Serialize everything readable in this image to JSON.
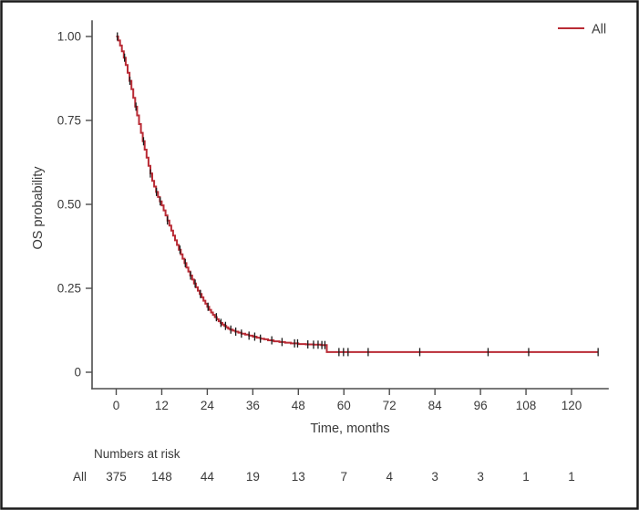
{
  "colors": {
    "curve": "#b92b35",
    "censor": "#1a1a1a",
    "axis": "#4d4d4d",
    "text": "#3a3a3a",
    "frame": "#1a1a1a",
    "background": "#ffffff"
  },
  "chart_data": {
    "type": "line",
    "subtype": "kaplan-meier-step",
    "title": "",
    "xlabel": "Time, months",
    "ylabel": "OS probability",
    "xlim": [
      0,
      129
    ],
    "ylim": [
      0,
      1.0
    ],
    "grid": "off",
    "xticks": [
      0,
      12,
      24,
      36,
      48,
      60,
      72,
      84,
      96,
      108,
      120
    ],
    "yticks": [
      {
        "value": 0,
        "label": "0"
      },
      {
        "value": 0.25,
        "label": "0.25"
      },
      {
        "value": 0.5,
        "label": "0.50"
      },
      {
        "value": 0.75,
        "label": "0.75"
      },
      {
        "value": 1,
        "label": "1.00"
      }
    ],
    "legend": {
      "position": "top-right",
      "entries": [
        {
          "label": "All",
          "color": "#b92b35"
        }
      ]
    },
    "series": [
      {
        "name": "All",
        "color": "#b92b35",
        "points": [
          [
            0,
            1.0
          ],
          [
            0.5,
            0.988
          ],
          [
            1,
            0.973
          ],
          [
            1.5,
            0.956
          ],
          [
            2,
            0.937
          ],
          [
            2.5,
            0.915
          ],
          [
            3,
            0.892
          ],
          [
            3.5,
            0.868
          ],
          [
            4,
            0.843
          ],
          [
            4.5,
            0.817
          ],
          [
            5,
            0.791
          ],
          [
            5.5,
            0.765
          ],
          [
            6,
            0.739
          ],
          [
            6.5,
            0.713
          ],
          [
            7,
            0.688
          ],
          [
            7.5,
            0.663
          ],
          [
            8,
            0.639
          ],
          [
            8.5,
            0.615
          ],
          [
            9,
            0.592
          ],
          [
            9.5,
            0.57
          ],
          [
            10,
            0.553
          ],
          [
            10.5,
            0.537
          ],
          [
            11,
            0.522
          ],
          [
            11.5,
            0.509
          ],
          [
            12,
            0.497
          ],
          [
            12.5,
            0.482
          ],
          [
            13,
            0.467
          ],
          [
            13.5,
            0.452
          ],
          [
            14,
            0.437
          ],
          [
            14.5,
            0.422
          ],
          [
            15,
            0.407
          ],
          [
            15.5,
            0.393
          ],
          [
            16,
            0.379
          ],
          [
            16.5,
            0.365
          ],
          [
            17,
            0.351
          ],
          [
            17.5,
            0.338
          ],
          [
            18,
            0.325
          ],
          [
            18.5,
            0.312
          ],
          [
            19,
            0.3
          ],
          [
            19.5,
            0.288
          ],
          [
            20,
            0.276
          ],
          [
            20.5,
            0.264
          ],
          [
            21,
            0.253
          ],
          [
            21.5,
            0.243
          ],
          [
            22,
            0.233
          ],
          [
            22.5,
            0.223
          ],
          [
            23,
            0.213
          ],
          [
            23.5,
            0.204
          ],
          [
            24,
            0.195
          ],
          [
            24.5,
            0.186
          ],
          [
            25,
            0.178
          ],
          [
            25.5,
            0.171
          ],
          [
            26,
            0.164
          ],
          [
            26.5,
            0.158
          ],
          [
            27,
            0.152
          ],
          [
            27.5,
            0.147
          ],
          [
            28,
            0.142
          ],
          [
            28.5,
            0.138
          ],
          [
            29,
            0.134
          ],
          [
            29.5,
            0.13
          ],
          [
            30,
            0.127
          ],
          [
            30.7,
            0.124
          ],
          [
            31.4,
            0.121
          ],
          [
            32.2,
            0.118
          ],
          [
            33,
            0.115
          ],
          [
            34,
            0.112
          ],
          [
            35,
            0.109
          ],
          [
            36,
            0.106
          ],
          [
            37,
            0.103
          ],
          [
            38,
            0.1
          ],
          [
            39,
            0.098
          ],
          [
            40,
            0.095
          ],
          [
            41.5,
            0.092
          ],
          [
            43,
            0.09
          ],
          [
            44.5,
            0.088
          ],
          [
            46,
            0.086
          ],
          [
            48,
            0.084
          ],
          [
            50,
            0.083
          ],
          [
            52,
            0.082
          ],
          [
            54,
            0.081
          ],
          [
            55.5,
            0.06
          ],
          [
            127,
            0.06
          ]
        ],
        "censor_times": [
          0.3,
          2.2,
          3.6,
          5.2,
          7.2,
          9.0,
          10.6,
          11.6,
          13.5,
          16.8,
          18.2,
          19.6,
          20.8,
          22.2,
          24.2,
          26.4,
          27.6,
          28.8,
          30.2,
          31.5,
          33.0,
          35.0,
          36.5,
          38.0,
          41.0,
          43.7,
          47.0,
          47.8,
          50.5,
          52.0,
          53.2,
          54.2,
          55.0,
          58.7,
          59.9,
          61.1,
          66.4,
          80.0,
          98.0,
          108.7,
          127.0
        ]
      }
    ],
    "risk_table": {
      "title": "Numbers at risk",
      "times": [
        0,
        12,
        24,
        36,
        48,
        60,
        72,
        84,
        96,
        108,
        120
      ],
      "rows": [
        {
          "label": "All",
          "values": [
            "375",
            "148",
            "44",
            "19",
            "13",
            "7",
            "4",
            "3",
            "3",
            "1",
            "1"
          ]
        }
      ]
    }
  }
}
